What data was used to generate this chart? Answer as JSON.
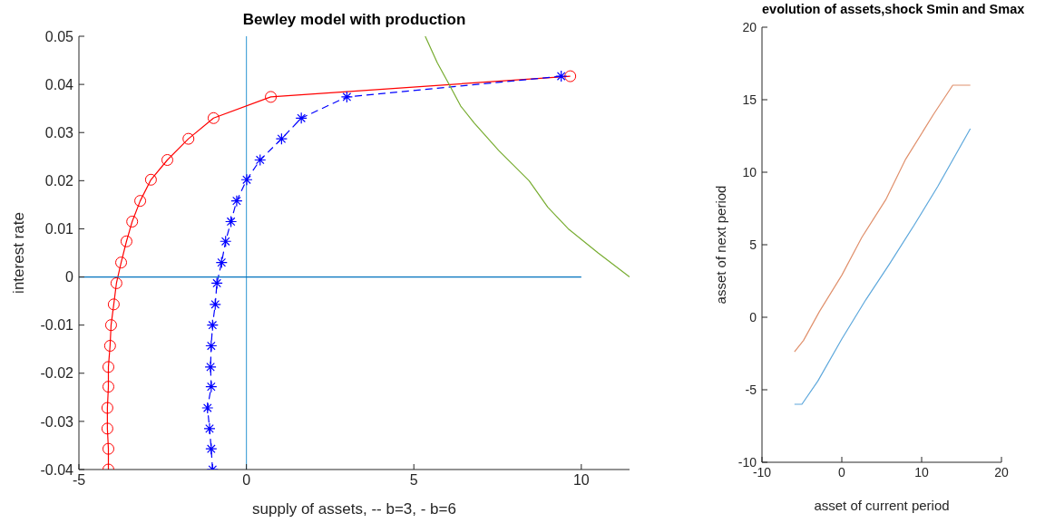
{
  "chart_data": [
    {
      "type": "line",
      "title": "Bewley model with production",
      "xlabel": "supply of assets, -- b=3, - b=6",
      "ylabel": "interest rate",
      "xlim": [
        -5,
        11.44
      ],
      "xticks": [
        -5,
        0,
        5,
        10
      ],
      "ylim": [
        -0.04,
        0.05
      ],
      "yticks": [
        -0.04,
        -0.03,
        -0.02,
        -0.01,
        0,
        0.01,
        0.02,
        0.03,
        0.04,
        0.05
      ],
      "series": [
        {
          "color": "#ff0000",
          "marker": "circle",
          "line_style": "solid",
          "x": [
            -4.12,
            -4.12,
            -4.15,
            -4.15,
            -4.12,
            -4.12,
            -4.07,
            -4.04,
            -3.96,
            -3.88,
            -3.74,
            -3.58,
            -3.41,
            -3.17,
            -2.85,
            -2.36,
            -1.73,
            -0.98,
            0.73,
            9.67
          ],
          "values": [
            -0.04,
            -0.0357,
            -0.0315,
            -0.0272,
            -0.0228,
            -0.0187,
            -0.0143,
            -0.01,
            -0.0057,
            -0.0013,
            0.003,
            0.0074,
            0.0115,
            0.0158,
            0.0202,
            0.0243,
            0.0287,
            0.033,
            0.0374,
            0.0417
          ]
        },
        {
          "color": "#0000ff",
          "marker": "cross",
          "line_style": "dashed",
          "x": [
            -1.01,
            -1.05,
            -1.1,
            -1.16,
            -1.05,
            -1.07,
            -1.05,
            -1.01,
            -0.93,
            -0.88,
            -0.74,
            -0.62,
            -0.46,
            -0.29,
            0.01,
            0.41,
            1.05,
            1.64,
            3.0,
            9.4
          ],
          "values": [
            -0.04,
            -0.0357,
            -0.0315,
            -0.0272,
            -0.0228,
            -0.0187,
            -0.0143,
            -0.01,
            -0.0057,
            -0.0013,
            0.003,
            0.0074,
            0.0115,
            0.0158,
            0.0202,
            0.0243,
            0.0287,
            0.033,
            0.0374,
            0.0417
          ]
        },
        {
          "color": "#77ac30",
          "marker": "none",
          "line_style": "solid",
          "x": [
            5.34,
            5.7,
            6.07,
            6.4,
            6.8,
            7.53,
            8.44,
            9.0,
            9.61,
            10.5,
            11.44
          ],
          "values": [
            0.05,
            0.0445,
            0.0398,
            0.0355,
            0.032,
            0.0263,
            0.02,
            0.0145,
            0.01,
            0.005,
            0.0
          ]
        },
        {
          "color": "#0072bd",
          "marker": "none",
          "line_style": "solid",
          "x": [
            -5,
            10
          ],
          "values": [
            0,
            0
          ]
        }
      ],
      "ref_lines": [
        {
          "axis": "x",
          "value": 0,
          "color": "#4da6d9"
        }
      ]
    },
    {
      "type": "line",
      "title": "evolution of assets,shock Smin and Smax",
      "xlabel": "asset of current period",
      "ylabel": "asset of next period",
      "xlim": [
        -10,
        20
      ],
      "xticks": [
        -10,
        0,
        10,
        20
      ],
      "ylim": [
        -10,
        20
      ],
      "yticks": [
        -10,
        -5,
        0,
        5,
        10,
        15,
        20
      ],
      "series": [
        {
          "color": "#e0906c",
          "x": [
            -5.93,
            -4.8,
            -2.8,
            0,
            2.5,
            5.5,
            8,
            11.5,
            13.9,
            16.1
          ],
          "values": [
            -2.39,
            -1.6,
            0.4,
            2.9,
            5.5,
            8.1,
            10.9,
            14,
            16,
            16
          ]
        },
        {
          "color": "#5ea8dc",
          "x": [
            -5.93,
            -5,
            -3,
            0,
            3,
            6,
            9,
            12,
            16.1
          ],
          "values": [
            -6,
            -6,
            -4.4,
            -1.5,
            1.2,
            3.7,
            6.3,
            9,
            13
          ]
        }
      ]
    }
  ]
}
